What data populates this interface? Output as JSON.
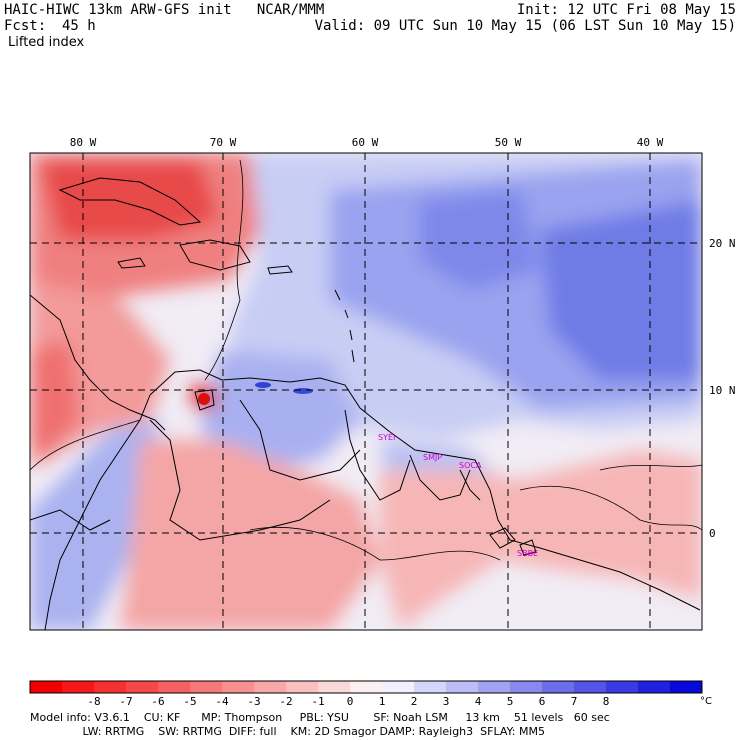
{
  "header": {
    "title_left": "HAIC-HIWC 13km ARW-GFS init   NCAR/MMM",
    "init": "Init: 12 UTC Fri 08 May 15",
    "fcst_label": "Fcst:",
    "fcst_value": "45 h",
    "valid": "Valid: 09 UTC Sun 10 May 15 (06 LST Sun 10 May 15)",
    "field_name": "Lifted index"
  },
  "map": {
    "lon_labels": [
      "80 W",
      "70 W",
      "60 W",
      "50 W",
      "40 W"
    ],
    "lat_labels": [
      "20 N",
      "10 N",
      "0"
    ],
    "station_labels": [
      "SYEI",
      "SMJP",
      "SOCA",
      "SBBE"
    ],
    "colors": {
      "frame": "#000000",
      "grid": "#000000",
      "station": "#cc00cc",
      "neutral": "#f4eef6",
      "stable_light": "#c6ccf6",
      "stable_mid": "#8c98ee",
      "stable_strong": "#5a68e4",
      "unstable_light": "#f8c2c2",
      "unstable_mid": "#f28a8a",
      "unstable_strong": "#e83c3c"
    }
  },
  "colorbar": {
    "ticks": [
      "-8",
      "-7",
      "-6",
      "-5",
      "-4",
      "-3",
      "-2",
      "-1",
      "0",
      "1",
      "2",
      "3",
      "4",
      "5",
      "6",
      "7",
      "8"
    ],
    "unit": "°C",
    "colors": [
      "#f00000",
      "#f41818",
      "#f53030",
      "#f54848",
      "#f66060",
      "#f77878",
      "#f89090",
      "#f9a8a8",
      "#fac0c0",
      "#fbd8d8",
      "#fdf0f0",
      "#f0f0fe",
      "#d6d6fa",
      "#bcbcf6",
      "#a2a2f2",
      "#8888ee",
      "#6e6eea",
      "#5454e6",
      "#3a3ae2",
      "#2020de",
      "#0808da"
    ]
  },
  "footer": {
    "line1": "Model info: V3.6.1    CU: KF      MP: Thompson     PBL: YSU       SF: Noah LSM     13 km    51 levels   60 sec",
    "line2": "               LW: RRTMG    SW: RRTMG  DIFF: full    KM: 2D Smagor DAMP: Rayleigh3  SFLAY: MM5"
  }
}
